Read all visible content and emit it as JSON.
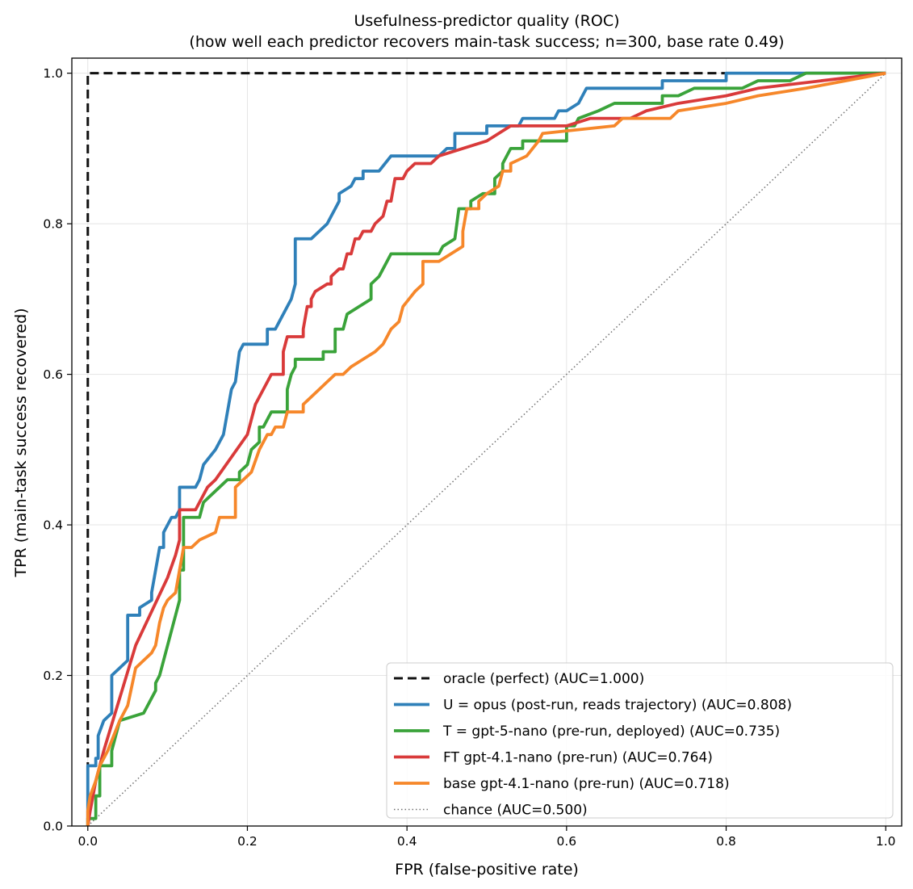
{
  "chart_data": {
    "type": "line",
    "title": "Usefulness-predictor quality (ROC)",
    "subtitle": "(how well each predictor recovers main-task success; n=300, base rate 0.49)",
    "xlabel": "FPR (false-positive rate)",
    "ylabel": "TPR (main-task success recovered)",
    "xlim": [
      -0.02,
      1.02
    ],
    "ylim": [
      0.0,
      1.02
    ],
    "xticks": [
      "0.0",
      "0.2",
      "0.4",
      "0.6",
      "0.8",
      "1.0"
    ],
    "yticks": [
      "0.0",
      "0.2",
      "0.4",
      "0.6",
      "0.8",
      "1.0"
    ],
    "xtick_values": [
      0,
      0.2,
      0.4,
      0.6,
      0.8,
      1.0
    ],
    "ytick_values": [
      0,
      0.2,
      0.4,
      0.6,
      0.8,
      1.0
    ],
    "grid": true,
    "legend_position": "lower-right",
    "series": [
      {
        "name": "oracle (perfect)  (AUC=1.000)",
        "color": "#111111",
        "style": "dashed",
        "points": [
          [
            0,
            0
          ],
          [
            0,
            1.0
          ],
          [
            1.0,
            1.0
          ]
        ]
      },
      {
        "name": "U = opus (post-run, reads trajectory)  (AUC=0.808)",
        "color": "#2f80b9",
        "style": "solid",
        "points": [
          [
            0,
            0
          ],
          [
            0,
            0.08
          ],
          [
            0.01,
            0.08
          ],
          [
            0.01,
            0.09
          ],
          [
            0.013,
            0.09
          ],
          [
            0.013,
            0.12
          ],
          [
            0.02,
            0.14
          ],
          [
            0.03,
            0.15
          ],
          [
            0.03,
            0.2
          ],
          [
            0.04,
            0.21
          ],
          [
            0.05,
            0.22
          ],
          [
            0.05,
            0.28
          ],
          [
            0.065,
            0.28
          ],
          [
            0.065,
            0.29
          ],
          [
            0.08,
            0.3
          ],
          [
            0.08,
            0.31
          ],
          [
            0.085,
            0.34
          ],
          [
            0.09,
            0.37
          ],
          [
            0.095,
            0.37
          ],
          [
            0.095,
            0.39
          ],
          [
            0.105,
            0.41
          ],
          [
            0.11,
            0.41
          ],
          [
            0.115,
            0.42
          ],
          [
            0.115,
            0.45
          ],
          [
            0.135,
            0.45
          ],
          [
            0.14,
            0.46
          ],
          [
            0.145,
            0.48
          ],
          [
            0.16,
            0.5
          ],
          [
            0.165,
            0.51
          ],
          [
            0.17,
            0.52
          ],
          [
            0.175,
            0.55
          ],
          [
            0.18,
            0.58
          ],
          [
            0.185,
            0.59
          ],
          [
            0.19,
            0.63
          ],
          [
            0.195,
            0.64
          ],
          [
            0.225,
            0.64
          ],
          [
            0.225,
            0.66
          ],
          [
            0.235,
            0.66
          ],
          [
            0.24,
            0.67
          ],
          [
            0.245,
            0.68
          ],
          [
            0.255,
            0.7
          ],
          [
            0.26,
            0.72
          ],
          [
            0.26,
            0.78
          ],
          [
            0.28,
            0.78
          ],
          [
            0.3,
            0.8
          ],
          [
            0.305,
            0.81
          ],
          [
            0.31,
            0.82
          ],
          [
            0.315,
            0.83
          ],
          [
            0.315,
            0.84
          ],
          [
            0.33,
            0.85
          ],
          [
            0.335,
            0.86
          ],
          [
            0.345,
            0.86
          ],
          [
            0.345,
            0.87
          ],
          [
            0.365,
            0.87
          ],
          [
            0.38,
            0.89
          ],
          [
            0.44,
            0.89
          ],
          [
            0.45,
            0.9
          ],
          [
            0.46,
            0.9
          ],
          [
            0.46,
            0.92
          ],
          [
            0.5,
            0.92
          ],
          [
            0.5,
            0.93
          ],
          [
            0.54,
            0.93
          ],
          [
            0.545,
            0.94
          ],
          [
            0.585,
            0.94
          ],
          [
            0.59,
            0.95
          ],
          [
            0.6,
            0.95
          ],
          [
            0.615,
            0.96
          ],
          [
            0.625,
            0.98
          ],
          [
            0.72,
            0.98
          ],
          [
            0.72,
            0.99
          ],
          [
            0.8,
            0.99
          ],
          [
            0.8,
            1.0
          ],
          [
            1.0,
            1.0
          ]
        ]
      },
      {
        "name": "T = gpt-5-nano (pre-run, deployed)  (AUC=0.735)",
        "color": "#3aa33a",
        "style": "solid",
        "points": [
          [
            0,
            0
          ],
          [
            0,
            0.01
          ],
          [
            0.01,
            0.01
          ],
          [
            0.01,
            0.04
          ],
          [
            0.015,
            0.04
          ],
          [
            0.015,
            0.08
          ],
          [
            0.03,
            0.08
          ],
          [
            0.03,
            0.1
          ],
          [
            0.035,
            0.12
          ],
          [
            0.04,
            0.14
          ],
          [
            0.07,
            0.15
          ],
          [
            0.085,
            0.18
          ],
          [
            0.085,
            0.19
          ],
          [
            0.09,
            0.2
          ],
          [
            0.095,
            0.22
          ],
          [
            0.1,
            0.24
          ],
          [
            0.11,
            0.28
          ],
          [
            0.115,
            0.3
          ],
          [
            0.115,
            0.34
          ],
          [
            0.12,
            0.34
          ],
          [
            0.12,
            0.41
          ],
          [
            0.14,
            0.41
          ],
          [
            0.145,
            0.43
          ],
          [
            0.165,
            0.45
          ],
          [
            0.175,
            0.46
          ],
          [
            0.19,
            0.46
          ],
          [
            0.19,
            0.47
          ],
          [
            0.2,
            0.48
          ],
          [
            0.205,
            0.5
          ],
          [
            0.215,
            0.51
          ],
          [
            0.215,
            0.53
          ],
          [
            0.22,
            0.53
          ],
          [
            0.225,
            0.54
          ],
          [
            0.23,
            0.55
          ],
          [
            0.25,
            0.55
          ],
          [
            0.25,
            0.58
          ],
          [
            0.255,
            0.6
          ],
          [
            0.26,
            0.61
          ],
          [
            0.26,
            0.62
          ],
          [
            0.295,
            0.62
          ],
          [
            0.295,
            0.63
          ],
          [
            0.31,
            0.63
          ],
          [
            0.31,
            0.66
          ],
          [
            0.32,
            0.66
          ],
          [
            0.325,
            0.68
          ],
          [
            0.355,
            0.7
          ],
          [
            0.355,
            0.72
          ],
          [
            0.365,
            0.73
          ],
          [
            0.37,
            0.74
          ],
          [
            0.375,
            0.75
          ],
          [
            0.38,
            0.76
          ],
          [
            0.44,
            0.76
          ],
          [
            0.445,
            0.77
          ],
          [
            0.46,
            0.78
          ],
          [
            0.465,
            0.82
          ],
          [
            0.48,
            0.82
          ],
          [
            0.48,
            0.83
          ],
          [
            0.495,
            0.84
          ],
          [
            0.51,
            0.84
          ],
          [
            0.51,
            0.86
          ],
          [
            0.52,
            0.87
          ],
          [
            0.52,
            0.88
          ],
          [
            0.53,
            0.9
          ],
          [
            0.545,
            0.9
          ],
          [
            0.545,
            0.91
          ],
          [
            0.6,
            0.91
          ],
          [
            0.6,
            0.93
          ],
          [
            0.61,
            0.93
          ],
          [
            0.615,
            0.94
          ],
          [
            0.64,
            0.95
          ],
          [
            0.66,
            0.96
          ],
          [
            0.72,
            0.96
          ],
          [
            0.72,
            0.97
          ],
          [
            0.74,
            0.97
          ],
          [
            0.76,
            0.98
          ],
          [
            0.82,
            0.98
          ],
          [
            0.84,
            0.99
          ],
          [
            0.88,
            0.99
          ],
          [
            0.9,
            1.0
          ],
          [
            1.0,
            1.0
          ]
        ]
      },
      {
        "name": "FT gpt-4.1-nano (pre-run)  (AUC=0.764)",
        "color": "#d93a3a",
        "style": "solid",
        "points": [
          [
            0,
            0
          ],
          [
            0.003,
            0.02
          ],
          [
            0.01,
            0.06
          ],
          [
            0.02,
            0.1
          ],
          [
            0.04,
            0.17
          ],
          [
            0.06,
            0.24
          ],
          [
            0.1,
            0.33
          ],
          [
            0.11,
            0.36
          ],
          [
            0.115,
            0.38
          ],
          [
            0.115,
            0.42
          ],
          [
            0.135,
            0.42
          ],
          [
            0.145,
            0.44
          ],
          [
            0.15,
            0.45
          ],
          [
            0.16,
            0.46
          ],
          [
            0.2,
            0.52
          ],
          [
            0.21,
            0.56
          ],
          [
            0.22,
            0.58
          ],
          [
            0.23,
            0.6
          ],
          [
            0.245,
            0.6
          ],
          [
            0.245,
            0.63
          ],
          [
            0.25,
            0.65
          ],
          [
            0.27,
            0.65
          ],
          [
            0.27,
            0.66
          ],
          [
            0.275,
            0.69
          ],
          [
            0.28,
            0.69
          ],
          [
            0.28,
            0.7
          ],
          [
            0.285,
            0.71
          ],
          [
            0.3,
            0.72
          ],
          [
            0.305,
            0.72
          ],
          [
            0.305,
            0.73
          ],
          [
            0.315,
            0.74
          ],
          [
            0.32,
            0.74
          ],
          [
            0.325,
            0.76
          ],
          [
            0.33,
            0.76
          ],
          [
            0.335,
            0.78
          ],
          [
            0.34,
            0.78
          ],
          [
            0.345,
            0.79
          ],
          [
            0.355,
            0.79
          ],
          [
            0.36,
            0.8
          ],
          [
            0.37,
            0.81
          ],
          [
            0.375,
            0.83
          ],
          [
            0.38,
            0.83
          ],
          [
            0.385,
            0.86
          ],
          [
            0.395,
            0.86
          ],
          [
            0.4,
            0.87
          ],
          [
            0.41,
            0.88
          ],
          [
            0.43,
            0.88
          ],
          [
            0.44,
            0.89
          ],
          [
            0.5,
            0.91
          ],
          [
            0.53,
            0.93
          ],
          [
            0.6,
            0.93
          ],
          [
            0.63,
            0.94
          ],
          [
            0.68,
            0.94
          ],
          [
            0.7,
            0.95
          ],
          [
            0.74,
            0.96
          ],
          [
            0.8,
            0.97
          ],
          [
            0.84,
            0.98
          ],
          [
            1.0,
            1.0
          ]
        ]
      },
      {
        "name": "base gpt-4.1-nano (pre-run)  (AUC=0.718)",
        "color": "#f6872a",
        "style": "solid",
        "points": [
          [
            0,
            0
          ],
          [
            0,
            0.02
          ],
          [
            0.003,
            0.04
          ],
          [
            0.01,
            0.06
          ],
          [
            0.015,
            0.08
          ],
          [
            0.02,
            0.09
          ],
          [
            0.025,
            0.1
          ],
          [
            0.04,
            0.14
          ],
          [
            0.05,
            0.16
          ],
          [
            0.06,
            0.21
          ],
          [
            0.07,
            0.22
          ],
          [
            0.08,
            0.23
          ],
          [
            0.085,
            0.24
          ],
          [
            0.09,
            0.27
          ],
          [
            0.095,
            0.29
          ],
          [
            0.1,
            0.3
          ],
          [
            0.11,
            0.31
          ],
          [
            0.115,
            0.34
          ],
          [
            0.12,
            0.37
          ],
          [
            0.13,
            0.37
          ],
          [
            0.14,
            0.38
          ],
          [
            0.16,
            0.39
          ],
          [
            0.165,
            0.41
          ],
          [
            0.185,
            0.41
          ],
          [
            0.185,
            0.45
          ],
          [
            0.205,
            0.47
          ],
          [
            0.215,
            0.5
          ],
          [
            0.225,
            0.52
          ],
          [
            0.23,
            0.52
          ],
          [
            0.235,
            0.53
          ],
          [
            0.245,
            0.53
          ],
          [
            0.25,
            0.55
          ],
          [
            0.27,
            0.55
          ],
          [
            0.27,
            0.56
          ],
          [
            0.29,
            0.58
          ],
          [
            0.3,
            0.59
          ],
          [
            0.31,
            0.6
          ],
          [
            0.32,
            0.6
          ],
          [
            0.33,
            0.61
          ],
          [
            0.345,
            0.62
          ],
          [
            0.36,
            0.63
          ],
          [
            0.37,
            0.64
          ],
          [
            0.375,
            0.65
          ],
          [
            0.38,
            0.66
          ],
          [
            0.39,
            0.67
          ],
          [
            0.395,
            0.69
          ],
          [
            0.41,
            0.71
          ],
          [
            0.42,
            0.72
          ],
          [
            0.42,
            0.75
          ],
          [
            0.44,
            0.75
          ],
          [
            0.47,
            0.77
          ],
          [
            0.47,
            0.79
          ],
          [
            0.475,
            0.82
          ],
          [
            0.49,
            0.82
          ],
          [
            0.49,
            0.83
          ],
          [
            0.5,
            0.84
          ],
          [
            0.515,
            0.85
          ],
          [
            0.52,
            0.87
          ],
          [
            0.53,
            0.87
          ],
          [
            0.53,
            0.88
          ],
          [
            0.55,
            0.89
          ],
          [
            0.565,
            0.91
          ],
          [
            0.57,
            0.92
          ],
          [
            0.66,
            0.93
          ],
          [
            0.67,
            0.94
          ],
          [
            0.73,
            0.94
          ],
          [
            0.74,
            0.95
          ],
          [
            0.8,
            0.96
          ],
          [
            0.84,
            0.97
          ],
          [
            0.9,
            0.98
          ],
          [
            0.95,
            0.99
          ],
          [
            1.0,
            1.0
          ]
        ]
      },
      {
        "name": "chance (AUC=0.500)",
        "color": "#707070",
        "style": "dotted",
        "points": [
          [
            0,
            0
          ],
          [
            1.0,
            1.0
          ]
        ]
      }
    ]
  }
}
